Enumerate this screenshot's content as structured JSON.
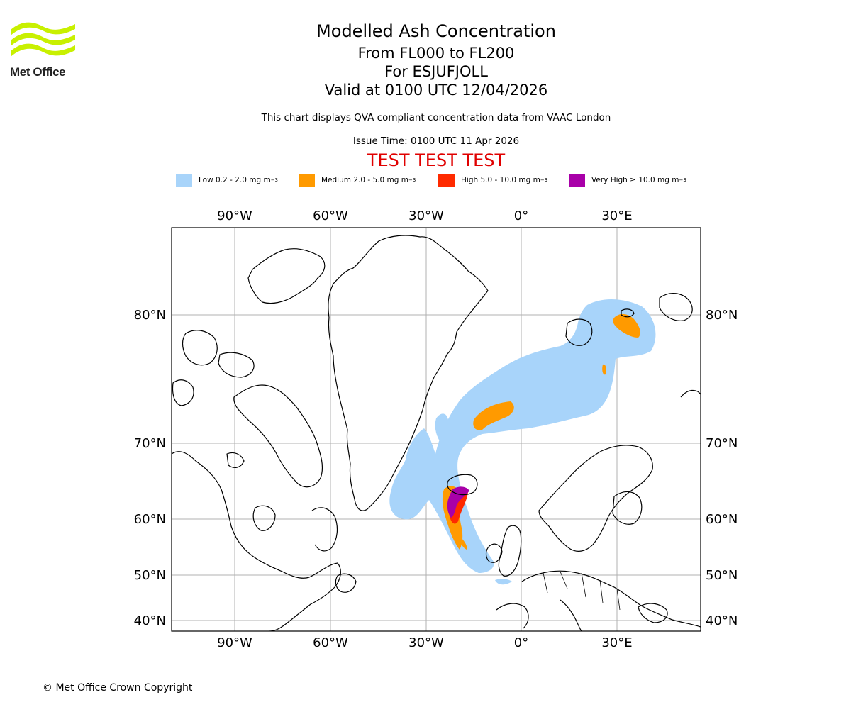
{
  "header": {
    "logo_text": "Met Office",
    "logo_color": "#c8f000",
    "title": "Modelled Ash Concentration",
    "levels": "From FL000 to FL200",
    "volcano": "For ESJUFJOLL",
    "valid": "Valid at 0100 UTC 12/04/2026",
    "note": "This chart displays QVA compliant concentration data from VAAC London",
    "issue": "Issue Time: 0100 UTC 11 Apr 2026",
    "test_banner": "TEST TEST TEST",
    "test_color": "#e00000"
  },
  "legend": [
    {
      "label": "Low 0.2 - 2.0 mg m",
      "sup": "−3",
      "color": "#a8d4fa"
    },
    {
      "label": "Medium 2.0 - 5.0 mg m",
      "sup": "−3",
      "color": "#ff9a00"
    },
    {
      "label": "High 5.0 - 10.0 mg m",
      "sup": "−3",
      "color": "#ff2a00"
    },
    {
      "label": "Very High  ≥  10.0 mg m",
      "sup": "−3",
      "color": "#a800a8"
    }
  ],
  "map": {
    "lon_labels": [
      "90°W",
      "60°W",
      "30°W",
      "0°",
      "30°E"
    ],
    "lat_labels": [
      "80°N",
      "70°N",
      "60°N",
      "50°N",
      "40°N"
    ],
    "gridline_color": "#b0b0b0"
  },
  "footer": {
    "copyright": "© Met Office Crown Copyright"
  }
}
